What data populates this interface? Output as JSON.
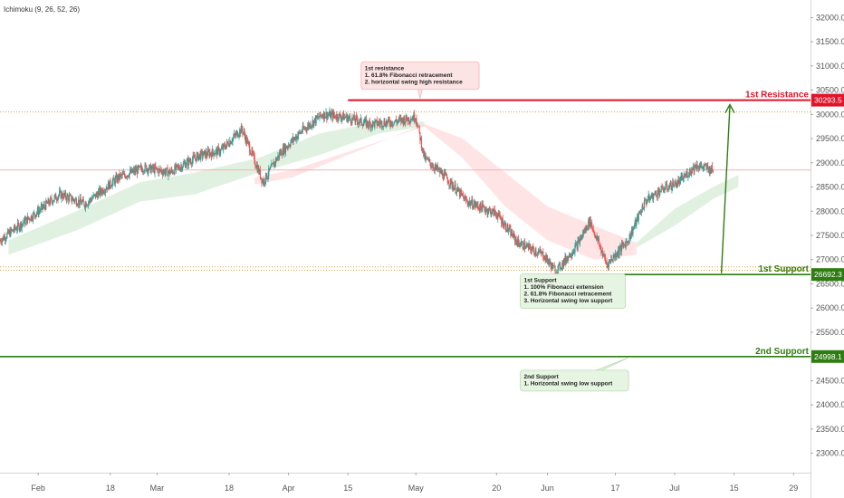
{
  "indicator_label": "Ichimoku (9, 26, 52, 26)",
  "colors": {
    "up": "#26a69a",
    "down": "#ef5350",
    "resistance": "#e0142b",
    "support": "#2e7d12",
    "cloud_bull": "#c8e6c9",
    "cloud_bear": "#ffcdd2",
    "fib_dotted": "#e3a33b",
    "last_price_line": "#f4b2b2",
    "arrow": "#2e7d12"
  },
  "chart_data": {
    "type": "candlestick",
    "title": "",
    "y_axis": {
      "ticks": [
        "23000.0",
        "23500.0",
        "24000.0",
        "24500.0",
        "25000.0",
        "25500.0",
        "26000.0",
        "26500.0",
        "27000.0",
        "27500.0",
        "28000.0",
        "28500.0",
        "29000.0",
        "29500.0",
        "30000.0",
        "30500.0",
        "31000.0",
        "31500.0",
        "32000.0"
      ],
      "range": [
        22600,
        32250
      ]
    },
    "x_axis": {
      "ticks": [
        {
          "label": "Feb",
          "date": "2023-02-01"
        },
        {
          "label": "18",
          "date": "2023-02-18"
        },
        {
          "label": "Mar",
          "date": "2023-03-01"
        },
        {
          "label": "18",
          "date": "2023-03-18"
        },
        {
          "label": "Apr",
          "date": "2023-04-01"
        },
        {
          "label": "15",
          "date": "2023-04-15"
        },
        {
          "label": "May",
          "date": "2023-05-01"
        },
        {
          "label": "20",
          "date": "2023-05-20"
        },
        {
          "label": "Jun",
          "date": "2023-06-01"
        },
        {
          "label": "17",
          "date": "2023-06-17"
        },
        {
          "label": "Jul",
          "date": "2023-07-01"
        },
        {
          "label": "15",
          "date": "2023-07-15"
        },
        {
          "label": "29",
          "date": "2023-07-29"
        }
      ],
      "range": [
        "2023-01-23",
        "2023-08-02"
      ]
    },
    "price_path": [
      {
        "date": "2023-01-23",
        "close": 27400
      },
      {
        "date": "2023-02-01",
        "close": 28000
      },
      {
        "date": "2023-02-06",
        "close": 28350
      },
      {
        "date": "2023-02-12",
        "close": 28150
      },
      {
        "date": "2023-02-20",
        "close": 28700
      },
      {
        "date": "2023-02-26",
        "close": 28900
      },
      {
        "date": "2023-03-04",
        "close": 28800
      },
      {
        "date": "2023-03-11",
        "close": 29150
      },
      {
        "date": "2023-03-16",
        "close": 29250
      },
      {
        "date": "2023-03-21",
        "close": 29700
      },
      {
        "date": "2023-03-26",
        "close": 28600
      },
      {
        "date": "2023-03-30",
        "close": 29200
      },
      {
        "date": "2023-04-04",
        "close": 29650
      },
      {
        "date": "2023-04-09",
        "close": 30000
      },
      {
        "date": "2023-04-14",
        "close": 29950
      },
      {
        "date": "2023-04-20",
        "close": 29800
      },
      {
        "date": "2023-04-26",
        "close": 29850
      },
      {
        "date": "2023-05-01",
        "close": 29950
      },
      {
        "date": "2023-05-03",
        "close": 29100
      },
      {
        "date": "2023-05-08",
        "close": 28700
      },
      {
        "date": "2023-05-13",
        "close": 28200
      },
      {
        "date": "2023-05-20",
        "close": 27950
      },
      {
        "date": "2023-05-25",
        "close": 27350
      },
      {
        "date": "2023-05-31",
        "close": 27100
      },
      {
        "date": "2023-06-03",
        "close": 26750
      },
      {
        "date": "2023-06-08",
        "close": 27300
      },
      {
        "date": "2023-06-11",
        "close": 27800
      },
      {
        "date": "2023-06-15",
        "close": 26900
      },
      {
        "date": "2023-06-20",
        "close": 27400
      },
      {
        "date": "2023-06-24",
        "close": 28200
      },
      {
        "date": "2023-06-28",
        "close": 28450
      },
      {
        "date": "2023-07-02",
        "close": 28600
      },
      {
        "date": "2023-07-06",
        "close": 28950
      },
      {
        "date": "2023-07-10",
        "close": 28850
      }
    ],
    "last_price": 28850,
    "cloud_bull": [
      {
        "date": "2023-01-25",
        "a": 27400,
        "b": 27100
      },
      {
        "date": "2023-02-10",
        "a": 28000,
        "b": 27600
      },
      {
        "date": "2023-02-25",
        "a": 28600,
        "b": 28200
      },
      {
        "date": "2023-03-10",
        "a": 28800,
        "b": 28350
      },
      {
        "date": "2023-03-25",
        "a": 29100,
        "b": 28800
      },
      {
        "date": "2023-04-08",
        "a": 29600,
        "b": 29150
      },
      {
        "date": "2023-04-22",
        "a": 29850,
        "b": 29600
      },
      {
        "date": "2023-05-03",
        "a": 29850,
        "b": 29750
      }
    ],
    "cloud_bear": [
      {
        "date": "2023-03-24",
        "a": 28700,
        "b": 28550
      },
      {
        "date": "2023-04-02",
        "a": 28850,
        "b": 28700
      },
      {
        "date": "2023-05-03",
        "a": 29750,
        "b": 29800
      },
      {
        "date": "2023-05-12",
        "a": 29100,
        "b": 29500
      },
      {
        "date": "2023-05-22",
        "a": 28100,
        "b": 28800
      },
      {
        "date": "2023-06-01",
        "a": 27400,
        "b": 28100
      },
      {
        "date": "2023-06-12",
        "a": 27000,
        "b": 27700
      },
      {
        "date": "2023-06-22",
        "a": 27100,
        "b": 27350
      }
    ],
    "cloud_bull_2": [
      {
        "date": "2023-06-22",
        "a": 27350,
        "b": 27250
      },
      {
        "date": "2023-07-01",
        "a": 28050,
        "b": 27700
      },
      {
        "date": "2023-07-10",
        "a": 28500,
        "b": 28250
      },
      {
        "date": "2023-07-16",
        "a": 28750,
        "b": 28500
      }
    ],
    "levels": [
      {
        "name": "1st Resistance",
        "value": 30293.5,
        "value_label": "30293.5",
        "kind": "resistance",
        "from": "2023-04-15"
      },
      {
        "name": "1st Support",
        "value": 26692.3,
        "value_label": "26692.3",
        "kind": "support",
        "from": "2023-06-02"
      },
      {
        "name": "2nd Support",
        "value": 24998.1,
        "value_label": "24998.1",
        "kind": "support",
        "from": "2023-01-23"
      }
    ],
    "fib_dotted_lines": [
      30050,
      26850,
      26780
    ],
    "arrow": {
      "from_date": "2023-07-12",
      "from_value": 26720,
      "to_date": "2023-07-14",
      "to_value": 30200
    },
    "annotations": [
      {
        "id": "resistance-note",
        "lines": [
          "1st resistance",
          "1. 61.8% Fibonacci retracement",
          "2. horizontal swing high resistance"
        ],
        "kind": "resistance",
        "anchor_date": "2023-05-02",
        "anchor_value": 30800,
        "pointer_date": "2023-05-02",
        "pointer_value": 30330
      },
      {
        "id": "support-note-1",
        "lines": [
          "1st Support",
          "1. 100% Fibonacci extension",
          "2. 61.8% Fibonacci retracement",
          "3. Horizontal swing low support"
        ],
        "kind": "support",
        "anchor_date": "2023-06-01",
        "anchor_value": 26350,
        "pointer_date": "2023-06-08",
        "pointer_value": 26650
      },
      {
        "id": "support-note-2",
        "lines": [
          "2nd Support",
          "1.  Horizontal swing low support"
        ],
        "kind": "support",
        "anchor_date": "2023-06-01",
        "anchor_value": 24500,
        "pointer_date": "2023-06-20",
        "pointer_value": 24970
      }
    ]
  }
}
